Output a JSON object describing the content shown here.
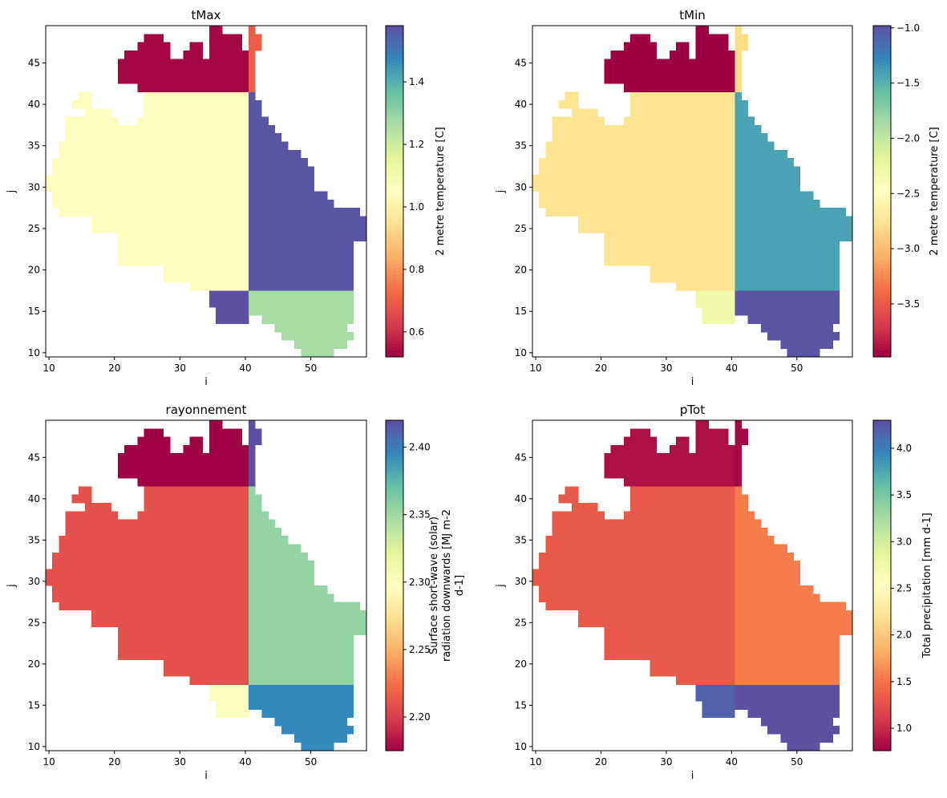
{
  "chart_data": [
    {
      "type": "heatmap",
      "title": "tMax",
      "xlabel": "i",
      "ylabel": "j",
      "xlim": [
        9.5,
        58.5
      ],
      "ylim": [
        9.5,
        49.5
      ],
      "xticks": [
        10,
        20,
        30,
        40,
        50
      ],
      "yticks": [
        10,
        15,
        20,
        25,
        30,
        35,
        40,
        45
      ],
      "colormap": "Spectral",
      "colorbar": {
        "label": [
          "2 metre temperature [C]"
        ],
        "range": [
          0.52,
          1.58
        ],
        "ticks": [
          0.6,
          0.8,
          1.0,
          1.2,
          1.4
        ],
        "tick_labels": [
          "0.6",
          "0.8",
          "1.0",
          "1.2",
          "1.4"
        ]
      },
      "region_values": {
        "west": 1.06,
        "east": 1.57,
        "north": 0.53,
        "north_strip": 0.7,
        "south_west": 1.58,
        "south_east": 1.27
      }
    },
    {
      "type": "heatmap",
      "title": "tMin",
      "xlabel": "i",
      "ylabel": "j",
      "xlim": [
        9.5,
        58.5
      ],
      "ylim": [
        9.5,
        49.5
      ],
      "xticks": [
        10,
        20,
        30,
        40,
        50
      ],
      "yticks": [
        10,
        15,
        20,
        25,
        30,
        35,
        40,
        45
      ],
      "colormap": "Spectral",
      "colorbar": {
        "label": [
          "2 metre temperature [C]"
        ],
        "range": [
          -3.98,
          -0.98
        ],
        "ticks": [
          -3.5,
          -3.0,
          -2.5,
          -2.0,
          -1.5,
          -1.0
        ],
        "tick_labels": [
          "−3.5",
          "−3.0",
          "−2.5",
          "−2.0",
          "−1.5",
          "−1.0"
        ]
      },
      "region_values": {
        "west": -2.75,
        "east": -1.42,
        "north": -3.98,
        "north_strip": -2.8,
        "south_west": -2.3,
        "south_east": -1.0
      }
    },
    {
      "type": "heatmap",
      "title": "rayonnement",
      "xlabel": "i",
      "ylabel": "j",
      "xlim": [
        9.5,
        58.5
      ],
      "ylim": [
        9.5,
        49.5
      ],
      "xticks": [
        10,
        20,
        30,
        40,
        50
      ],
      "yticks": [
        10,
        15,
        20,
        25,
        30,
        35,
        40,
        45
      ],
      "colormap": "Spectral",
      "colorbar": {
        "label": [
          "Surface short-wave (solar)",
          "radiation downwards [MJ m-2",
          "d-1]"
        ],
        "range": [
          2.175,
          2.42
        ],
        "ticks": [
          2.2,
          2.25,
          2.3,
          2.35,
          2.4
        ],
        "tick_labels": [
          "2.20",
          "2.25",
          "2.30",
          "2.35",
          "2.40"
        ]
      },
      "region_values": {
        "west": 2.21,
        "east": 2.355,
        "north": 2.176,
        "north_strip": 2.42,
        "south_west": 2.3,
        "south_east": 2.395
      }
    },
    {
      "type": "heatmap",
      "title": "pTot",
      "xlabel": "i",
      "ylabel": "j",
      "xlim": [
        9.5,
        58.5
      ],
      "ylim": [
        9.5,
        49.5
      ],
      "xticks": [
        10,
        20,
        30,
        40,
        50
      ],
      "yticks": [
        10,
        15,
        20,
        25,
        30,
        35,
        40,
        45
      ],
      "colormap": "Spectral",
      "colorbar": {
        "label": [
          "Total precipitation [mm d-1]"
        ],
        "range": [
          0.76,
          4.3
        ],
        "ticks": [
          1.0,
          1.5,
          2.0,
          2.5,
          3.0,
          3.5,
          4.0
        ],
        "tick_labels": [
          "1.0",
          "1.5",
          "2.0",
          "2.5",
          "3.0",
          "3.5",
          "4.0"
        ]
      },
      "region_values": {
        "west": 1.32,
        "east": 1.55,
        "north": 0.85,
        "north_strip": 0.8,
        "south_west": 4.2,
        "south_east": 4.3
      }
    }
  ]
}
